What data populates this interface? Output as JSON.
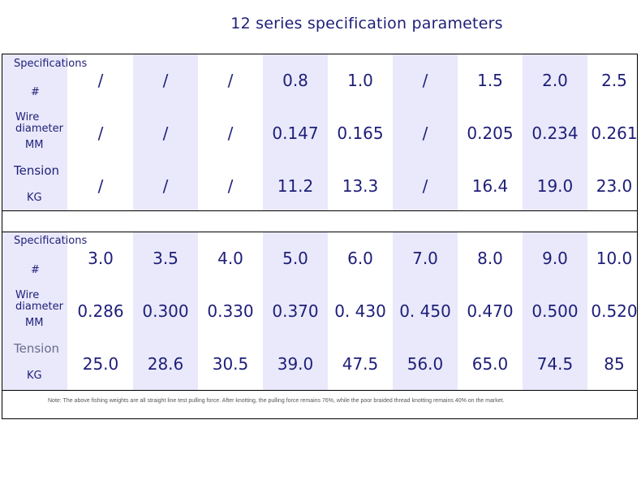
{
  "title": "12 series specification parameters",
  "labels": {
    "spec": "Specifications",
    "hash": "#",
    "wire1": "Wire",
    "wire2": "diameter",
    "mm": "MM",
    "tension": "Tension",
    "kg": "KG"
  },
  "table1": {
    "spec": [
      "/",
      "/",
      "/",
      "0.8",
      "1.0",
      "/",
      "1.5",
      "2.0",
      "2.5"
    ],
    "diameter": [
      "/",
      "/",
      "/",
      "0.147",
      "0.165",
      "/",
      "0.205",
      "0.234",
      "0.261"
    ],
    "tension": [
      "/",
      "/",
      "/",
      "11.2",
      "13.3",
      "/",
      "16.4",
      "19.0",
      "23.0"
    ]
  },
  "table2": {
    "spec": [
      "3.0",
      "3.5",
      "4.0",
      "5.0",
      "6.0",
      "7.0",
      "8.0",
      "9.0",
      "10.0"
    ],
    "diameter": [
      "0.286",
      "0.300",
      "0.330",
      "0.370",
      "0. 430",
      "0. 450",
      "0.470",
      "0.500",
      "0.520"
    ],
    "tension": [
      "25.0",
      "28.6",
      "30.5",
      "39.0",
      "47.5",
      "56.0",
      "65.0",
      "74.5",
      "85"
    ]
  },
  "note": "Note: The above fishing weights are all straight line test pulling force. After knotting, the pulling force remains 76%, while the poor braided thread knotting remains 40% on the market.",
  "colors": {
    "text": "#1e1e78",
    "band": "#e9e9fb"
  }
}
